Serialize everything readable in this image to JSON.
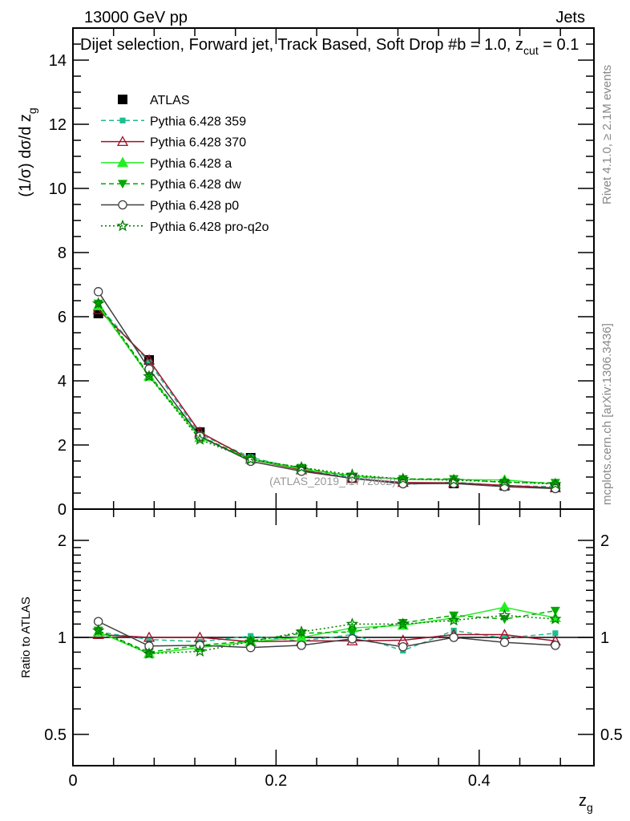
{
  "header": {
    "left": "13000 GeV pp",
    "right": "Jets"
  },
  "side_texts": {
    "rivet": "Rivet 4.1.0, ≥ 2.1M events",
    "mcplots": "mcplots.cern.ch [arXiv:1306.3436]"
  },
  "chart_data": [
    {
      "type": "line",
      "panel": "main",
      "title": "Dijet selection, Forward jet, Track Based, Soft Drop #b = 1.0, z",
      "title_sub": "cut",
      "title_tail": " = 0.1",
      "ylabel": "(1/σ) dσ/d z",
      "ylabel_sub": "g",
      "watermark": "(ATLAS_2019_I1772062)",
      "xlim": [
        0,
        0.513
      ],
      "ylim": [
        0,
        15
      ],
      "yticks": [
        "0",
        "2",
        "4",
        "6",
        "8",
        "10",
        "12",
        "14"
      ],
      "x": [
        0.025,
        0.075,
        0.125,
        0.175,
        0.225,
        0.275,
        0.325,
        0.375,
        0.425,
        0.475
      ],
      "legend_placement": "top-left",
      "series": [
        {
          "name": "ATLAS",
          "color": "#000000",
          "marker": "square",
          "style": "none",
          "values": [
            6.1,
            4.65,
            2.4,
            1.6,
            1.25,
            0.97,
            0.85,
            0.8,
            0.73,
            0.68
          ]
        },
        {
          "name": "Pythia 6.428 359",
          "color": "#1cbf8f",
          "marker": "small-square",
          "style": "dashed",
          "values": [
            6.34,
            4.58,
            2.33,
            1.62,
            1.22,
            0.99,
            0.77,
            0.84,
            0.73,
            0.7
          ]
        },
        {
          "name": "Pythia 6.428 370",
          "color": "#a0102a",
          "marker": "open-triangle",
          "style": "solid",
          "values": [
            6.22,
            4.65,
            2.4,
            1.55,
            1.22,
            0.95,
            0.83,
            0.82,
            0.74,
            0.66
          ]
        },
        {
          "name": "Pythia 6.428 a",
          "color": "#22ee22",
          "marker": "triangle",
          "style": "solid",
          "values": [
            6.34,
            4.14,
            2.23,
            1.55,
            1.25,
            1.04,
            0.93,
            0.92,
            0.91,
            0.78
          ]
        },
        {
          "name": "Pythia 6.428 dw",
          "color": "#00aa00",
          "marker": "down-triangle",
          "style": "dashed",
          "values": [
            6.41,
            4.19,
            2.27,
            1.56,
            1.29,
            1.01,
            0.94,
            0.94,
            0.83,
            0.82
          ]
        },
        {
          "name": "Pythia 6.428 p0",
          "color": "#404040",
          "marker": "open-circle",
          "style": "solid",
          "values": [
            6.78,
            4.37,
            2.27,
            1.49,
            1.18,
            0.96,
            0.79,
            0.8,
            0.7,
            0.64
          ]
        },
        {
          "name": "Pythia 6.428 pro-q2o",
          "color": "#007a00",
          "marker": "star",
          "style": "dotted",
          "values": [
            6.41,
            4.14,
            2.17,
            1.55,
            1.3,
            1.07,
            0.94,
            0.9,
            0.85,
            0.78
          ]
        }
      ]
    },
    {
      "type": "line",
      "panel": "ratio",
      "ylabel": "Ratio to ATLAS",
      "xlabel": "z",
      "xlabel_sub": "g",
      "yscale": "log",
      "ylim": [
        0.4,
        2.5
      ],
      "yticks": [
        "0.5",
        "1",
        "2"
      ],
      "xticks": [
        "0",
        "0.2",
        "0.4"
      ],
      "x": [
        0.025,
        0.075,
        0.125,
        0.175,
        0.225,
        0.275,
        0.325,
        0.375,
        0.425,
        0.475
      ],
      "series": [
        {
          "name": "Pythia 6.428 359",
          "values": [
            1.04,
            0.985,
            0.97,
            1.01,
            0.975,
            1.02,
            0.91,
            1.05,
            0.995,
            1.03
          ]
        },
        {
          "name": "Pythia 6.428 370",
          "values": [
            1.02,
            1.0,
            1.0,
            0.97,
            0.975,
            0.975,
            0.98,
            1.02,
            1.02,
            0.975
          ]
        },
        {
          "name": "Pythia 6.428 a",
          "values": [
            1.04,
            0.89,
            0.93,
            0.97,
            1.0,
            1.07,
            1.09,
            1.15,
            1.24,
            1.15
          ]
        },
        {
          "name": "Pythia 6.428 dw",
          "values": [
            1.05,
            0.9,
            0.945,
            0.975,
            1.03,
            1.04,
            1.11,
            1.17,
            1.14,
            1.21
          ]
        },
        {
          "name": "Pythia 6.428 p0",
          "values": [
            1.12,
            0.94,
            0.945,
            0.93,
            0.945,
            0.99,
            0.935,
            1.0,
            0.965,
            0.945
          ]
        },
        {
          "name": "Pythia 6.428 pro-q2o",
          "values": [
            1.05,
            0.89,
            0.905,
            0.97,
            1.04,
            1.1,
            1.1,
            1.13,
            1.17,
            1.14
          ]
        }
      ]
    }
  ]
}
